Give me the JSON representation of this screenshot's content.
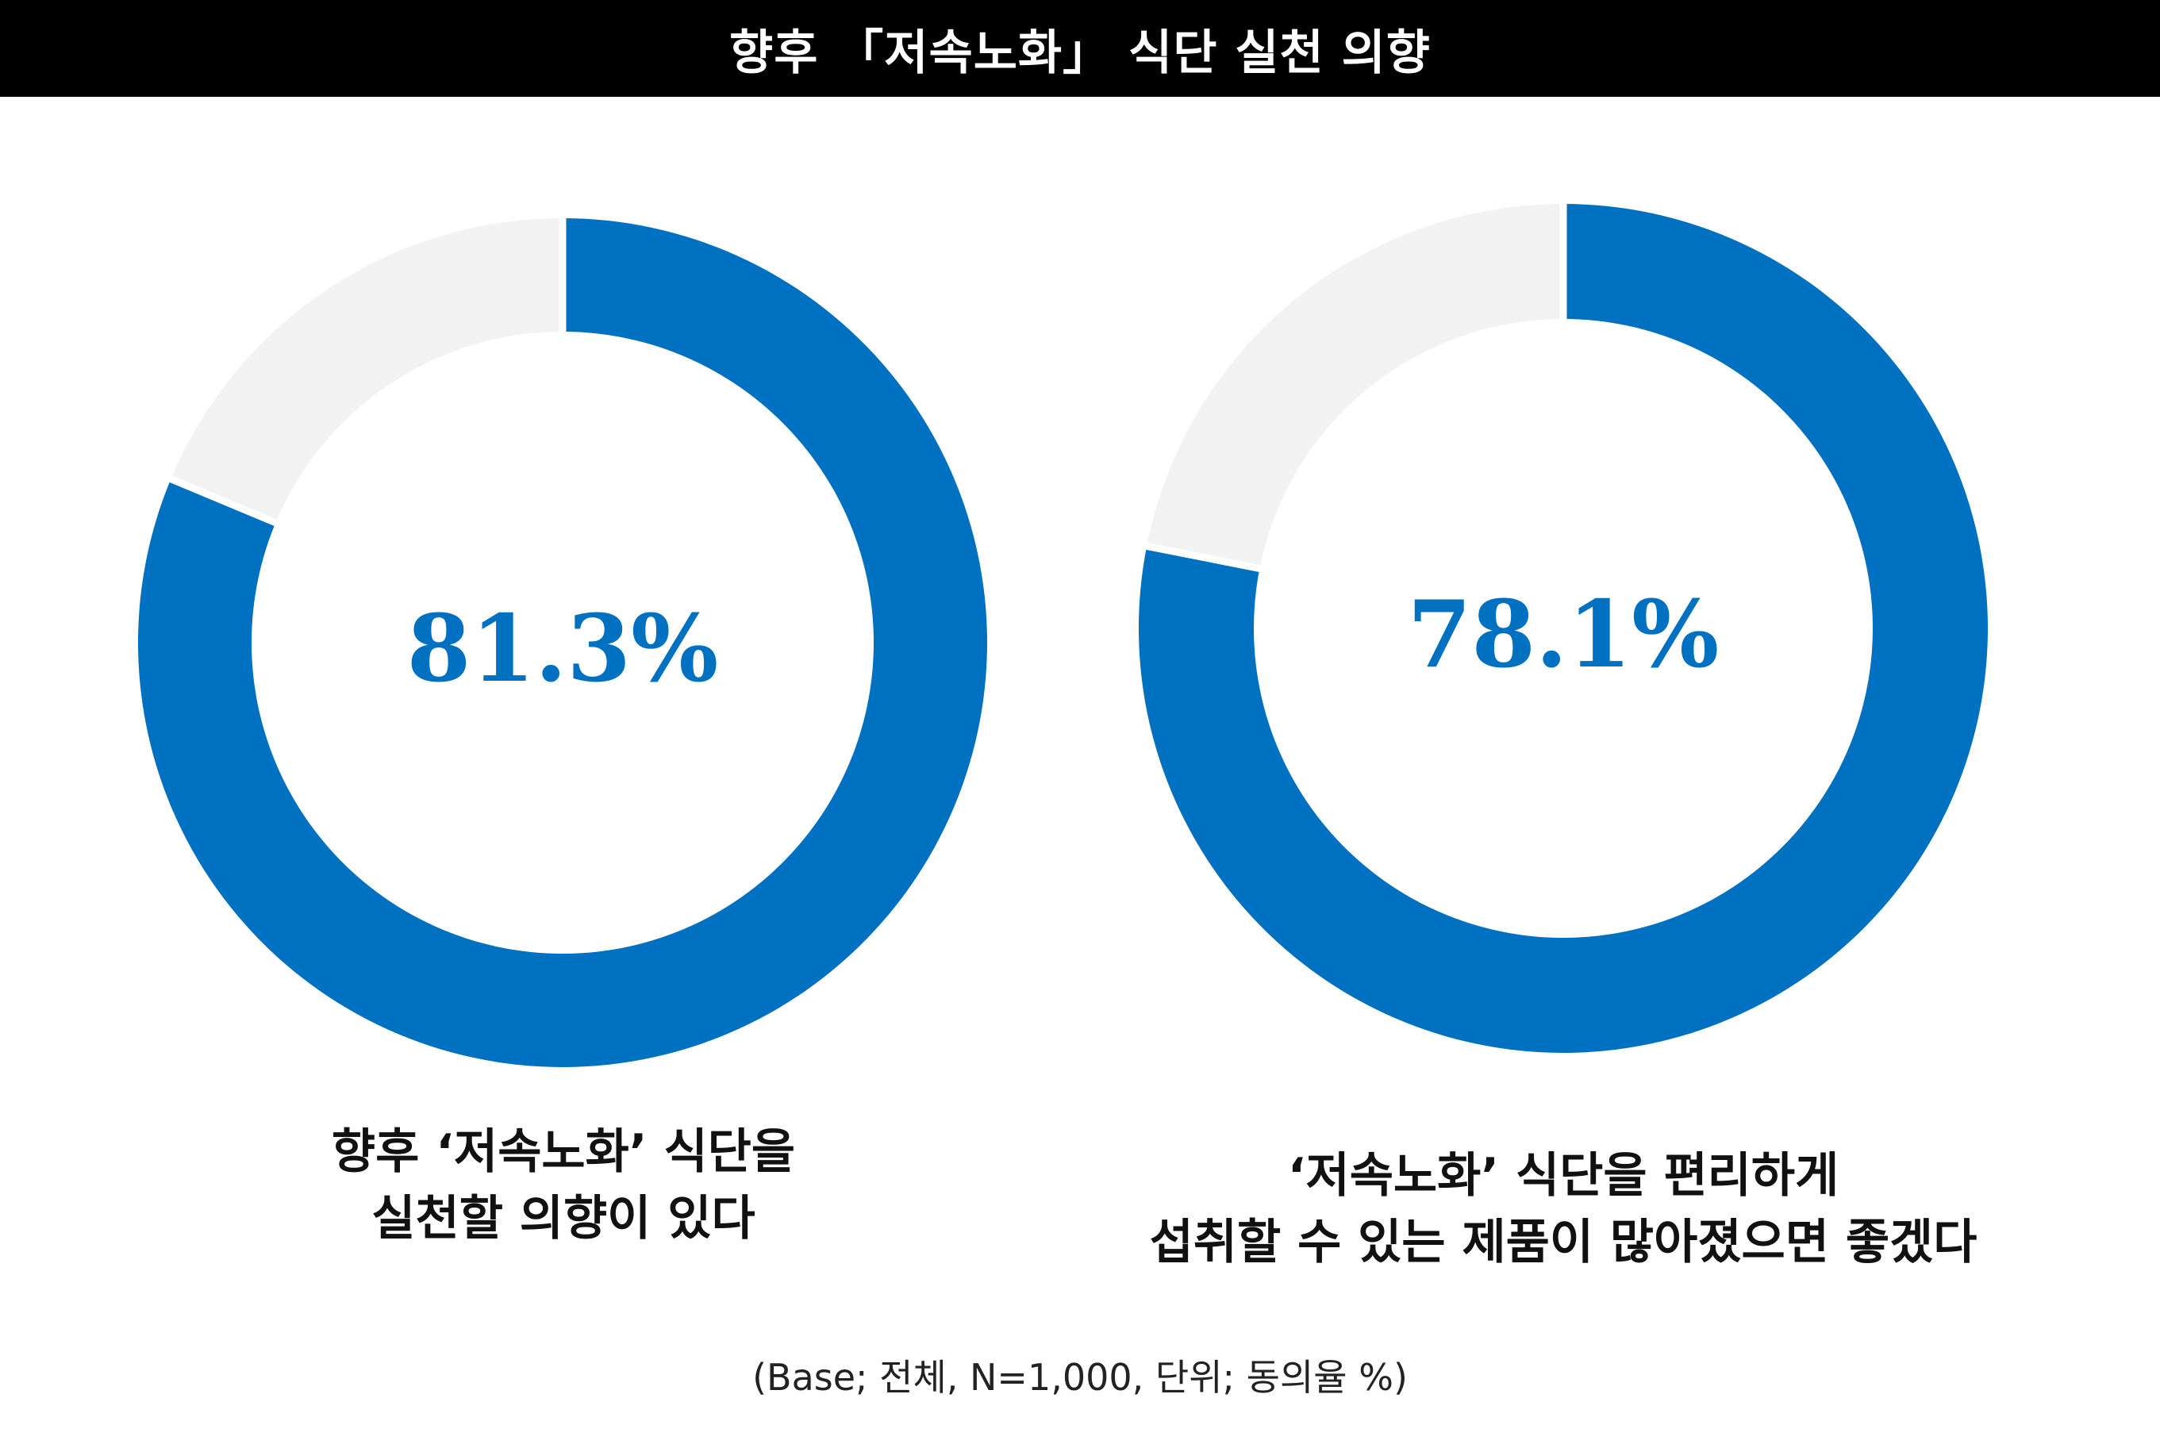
{
  "title": "향후 「저속노화」 식단 실천 의향",
  "colors": {
    "accent": "#0070c0",
    "remainder": "#f2f2f2",
    "separator": "#ffffff"
  },
  "chart_data": [
    {
      "type": "pie",
      "variant": "donut",
      "slices": [
        {
          "value": 81.3
        },
        {
          "value": 18.7
        }
      ],
      "center_label": "81.3%",
      "caption": [
        "향후 ‘저속노화’ 식단을",
        "실천할 의향이 있다"
      ]
    },
    {
      "type": "pie",
      "variant": "donut",
      "slices": [
        {
          "value": 78.1
        },
        {
          "value": 21.9
        }
      ],
      "center_label": "78.1%",
      "caption": [
        "‘저속노화’ 식단을 편리하게",
        "섭취할 수 있는 제품이 많아졌으면 좋겠다"
      ]
    }
  ],
  "footnote": "(Base; 전체, N=1,000, 단위; 동의율 %)"
}
